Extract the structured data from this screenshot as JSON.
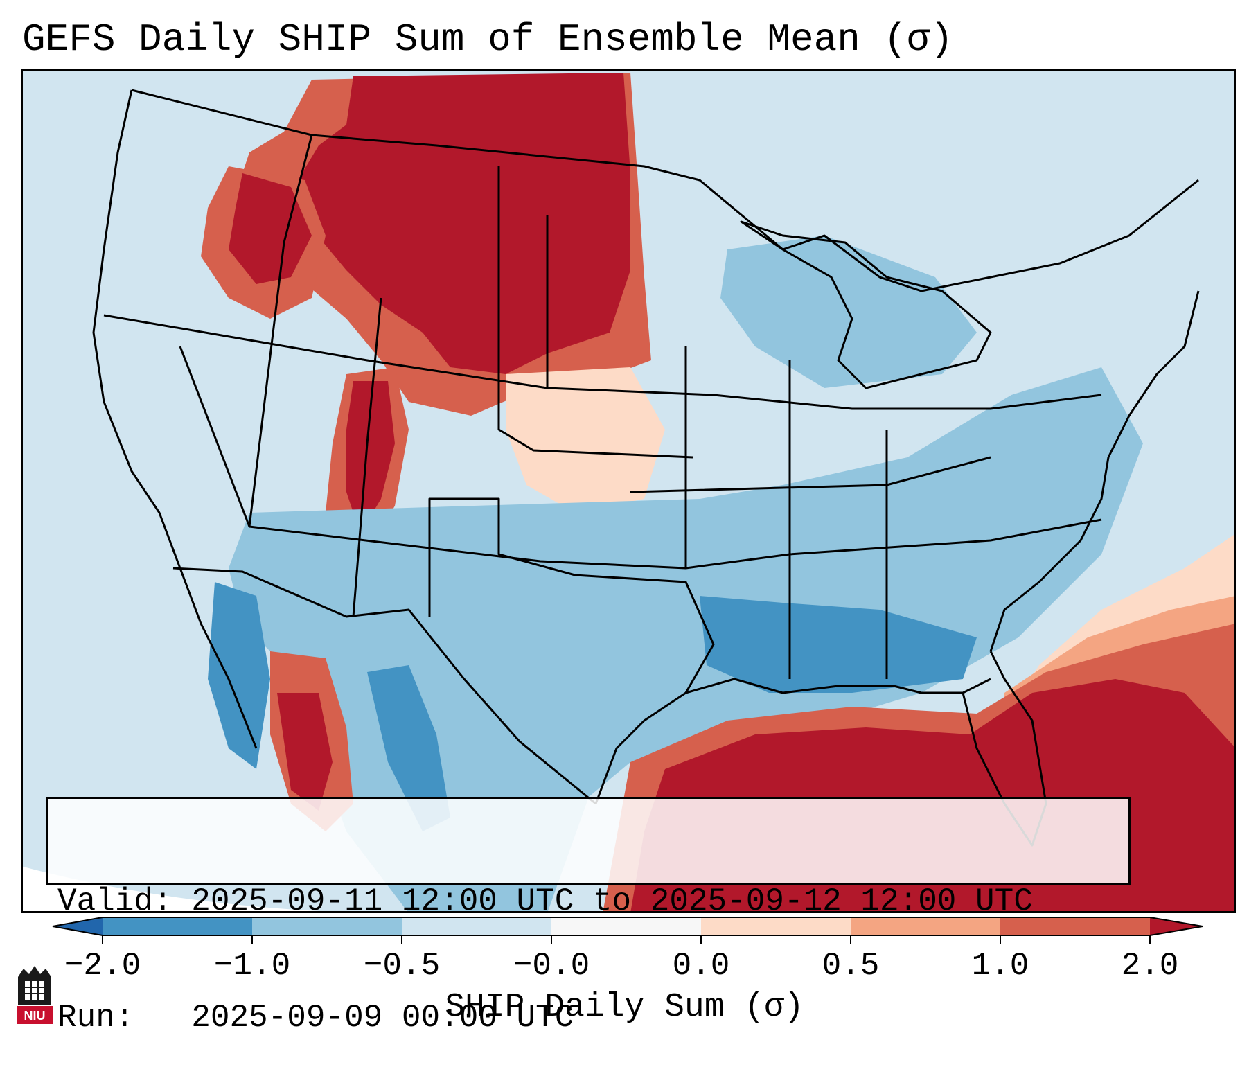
{
  "title": "GEFS Daily SHIP Sum of Ensemble Mean (σ)",
  "info": {
    "valid": "Valid: 2025-09-11 12:00 UTC to 2025-09-12 12:00 UTC",
    "run": "Run:   2025-09-09 00:00 UTC"
  },
  "colorbar": {
    "label": "SHIP Daily Sum (σ)",
    "ticks": [
      "−2.0",
      "−1.0",
      "−0.5",
      "−0.0",
      "0.0",
      "0.5",
      "1.0",
      "2.0"
    ],
    "colors": [
      "#4393c3",
      "#92c5de",
      "#d1e5f0",
      "#f7f7f7",
      "#fddbc7",
      "#f4a582",
      "#d6604d",
      "#b2182b"
    ],
    "extend_low_color": "#2166ac",
    "extend_high_color": "#b2182b"
  },
  "logo": {
    "text": "NIU"
  }
}
